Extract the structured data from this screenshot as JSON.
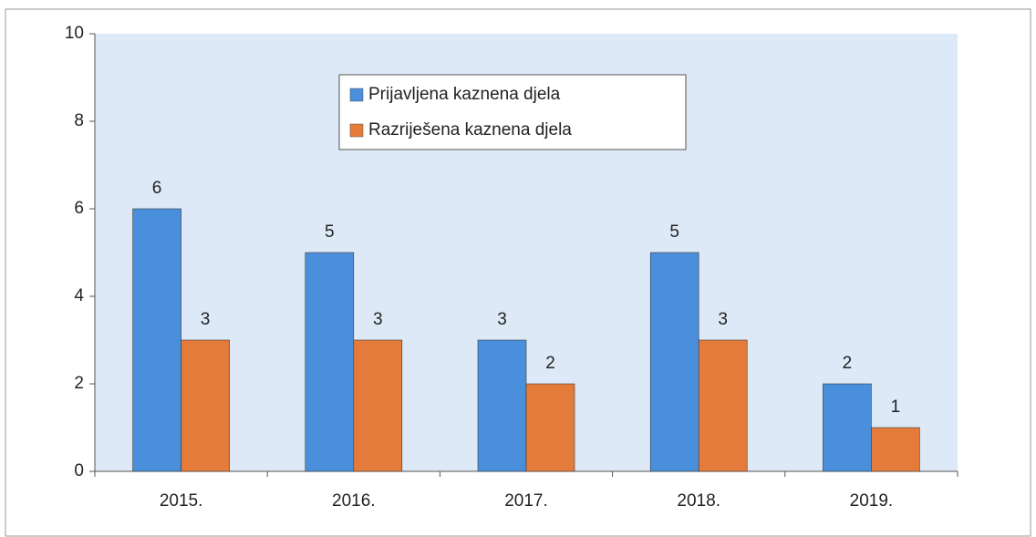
{
  "chart_data": {
    "type": "bar",
    "categories": [
      "2015.",
      "2016.",
      "2017.",
      "2018.",
      "2019."
    ],
    "series": [
      {
        "name": "Prijavljena kaznena djela",
        "color": "#4a8fdb",
        "values": [
          6,
          5,
          3,
          5,
          2
        ]
      },
      {
        "name": "Razriješena kaznena djela",
        "color": "#e57b3a",
        "values": [
          3,
          3,
          2,
          3,
          1
        ]
      }
    ],
    "ylim": [
      0,
      10
    ],
    "yticks": [
      0,
      2,
      4,
      6,
      8,
      10
    ],
    "legend": "top-center"
  }
}
